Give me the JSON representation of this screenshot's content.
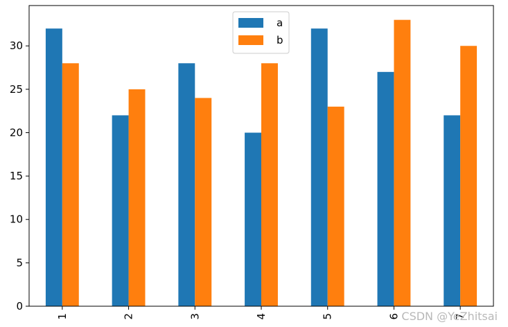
{
  "chart_data": {
    "type": "bar",
    "categories": [
      "1",
      "2",
      "3",
      "4",
      "5",
      "6",
      "7"
    ],
    "series": [
      {
        "name": "a",
        "values": [
          32,
          22,
          28,
          20,
          32,
          27,
          22
        ],
        "color": "#1f77b4"
      },
      {
        "name": "b",
        "values": [
          28,
          25,
          24,
          28,
          23,
          33,
          30
        ],
        "color": "#ff7f0e"
      }
    ],
    "title": "",
    "xlabel": "",
    "ylabel": "",
    "ylim": [
      0,
      34.65
    ],
    "yticks": [
      0,
      5,
      10,
      15,
      20,
      25,
      30
    ],
    "xtick_rotation": 90,
    "grid": false,
    "legend_position": "upper center"
  },
  "watermark": "CSDN @YeZhitsai"
}
